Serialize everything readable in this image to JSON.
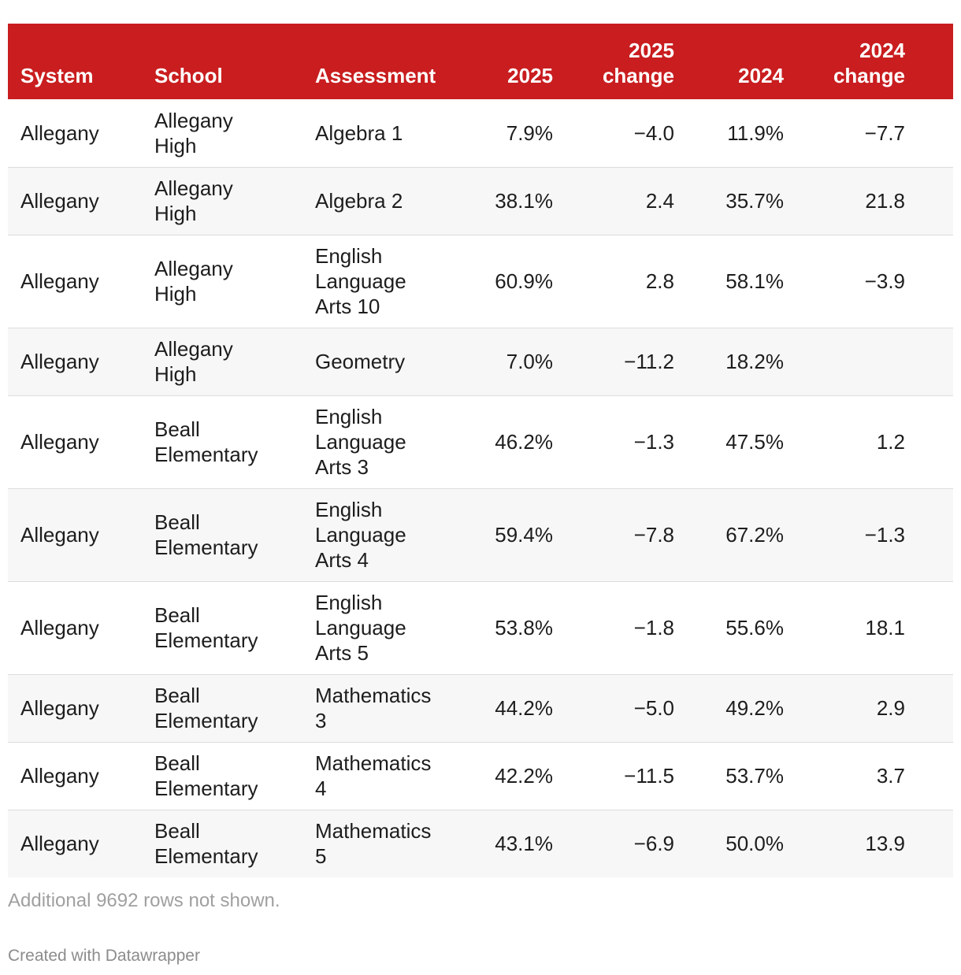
{
  "chart_data": {
    "type": "table",
    "columns": [
      "System",
      "School",
      "Assessment",
      "2025",
      "2025 change",
      "2024",
      "2024 change"
    ],
    "rows": [
      [
        "Allegany",
        "Allegany High",
        "Algebra 1",
        "7.9%",
        "−4.0",
        "11.9%",
        "−7.7"
      ],
      [
        "Allegany",
        "Allegany High",
        "Algebra 2",
        "38.1%",
        "2.4",
        "35.7%",
        "21.8"
      ],
      [
        "Allegany",
        "Allegany High",
        "English Language Arts 10",
        "60.9%",
        "2.8",
        "58.1%",
        "−3.9"
      ],
      [
        "Allegany",
        "Allegany High",
        "Geometry",
        "7.0%",
        "−11.2",
        "18.2%",
        ""
      ],
      [
        "Allegany",
        "Beall Elementary",
        "English Language Arts 3",
        "46.2%",
        "−1.3",
        "47.5%",
        "1.2"
      ],
      [
        "Allegany",
        "Beall Elementary",
        "English Language Arts 4",
        "59.4%",
        "−7.8",
        "67.2%",
        "−1.3"
      ],
      [
        "Allegany",
        "Beall Elementary",
        "English Language Arts 5",
        "53.8%",
        "−1.8",
        "55.6%",
        "18.1"
      ],
      [
        "Allegany",
        "Beall Elementary",
        "Mathematics 3",
        "44.2%",
        "−5.0",
        "49.2%",
        "2.9"
      ],
      [
        "Allegany",
        "Beall Elementary",
        "Mathematics 4",
        "42.2%",
        "−11.5",
        "53.7%",
        "3.7"
      ],
      [
        "Allegany",
        "Beall Elementary",
        "Mathematics 5",
        "43.1%",
        "−6.9",
        "50.0%",
        "13.9"
      ]
    ],
    "header_color": "#c91d1f"
  },
  "footer": {
    "note": "Additional 9692 rows not shown.",
    "credit": "Created with Datawrapper"
  }
}
